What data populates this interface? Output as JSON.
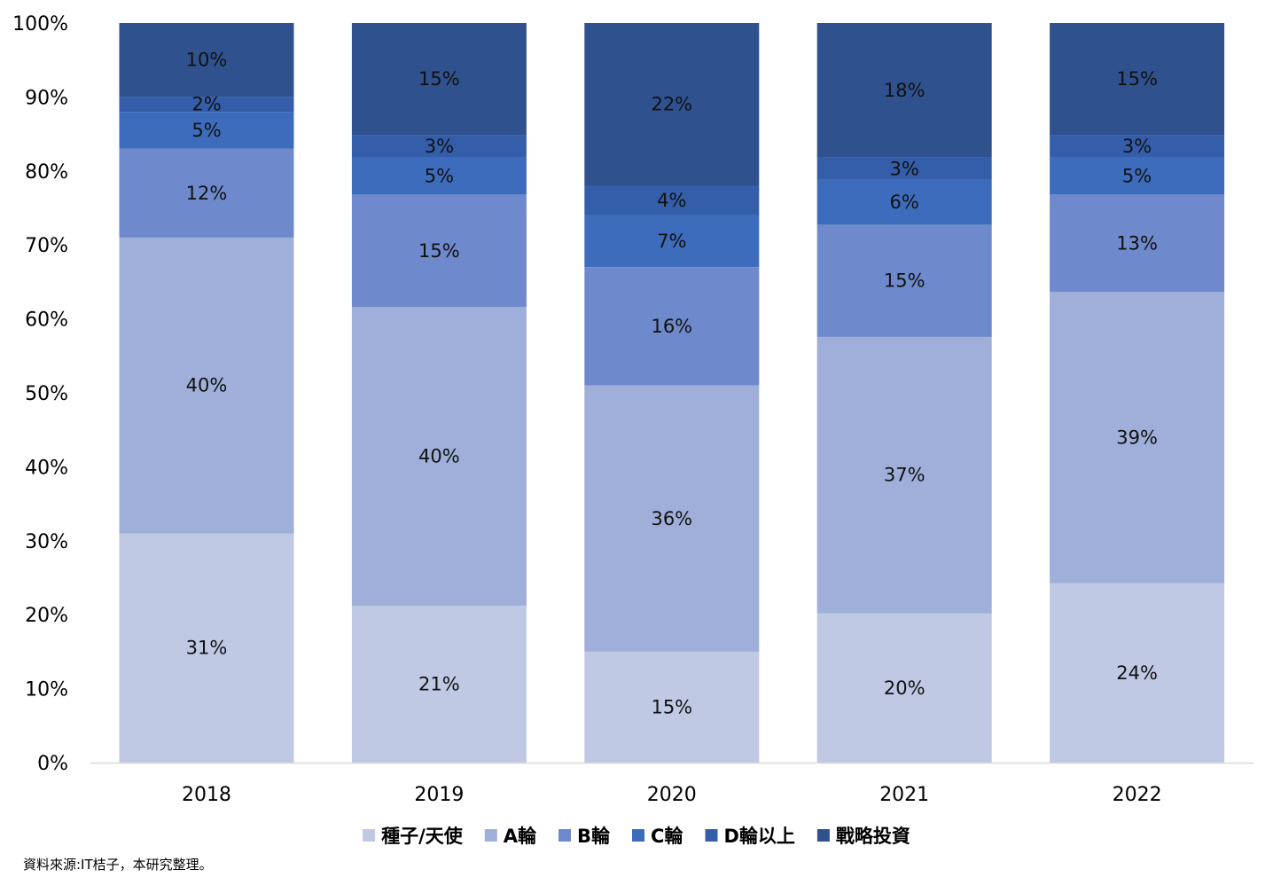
{
  "chart_data": {
    "type": "bar",
    "stacked": true,
    "percent_stacked": true,
    "categories": [
      "2018",
      "2019",
      "2020",
      "2021",
      "2022"
    ],
    "series": [
      {
        "name": "種子/天使",
        "values": [
          31,
          21,
          15,
          20,
          24
        ],
        "labels": [
          "31%",
          "21%",
          "15%",
          "20%",
          "24%"
        ],
        "color": "#C0C9E4"
      },
      {
        "name": "A輪",
        "values": [
          40,
          40,
          36,
          37,
          39
        ],
        "labels": [
          "40%",
          "40%",
          "36%",
          "37%",
          "39%"
        ],
        "color": "#9FAFD9"
      },
      {
        "name": "B輪",
        "values": [
          12,
          15,
          16,
          15,
          13
        ],
        "labels": [
          "12%",
          "15%",
          "16%",
          "15%",
          "13%"
        ],
        "color": "#6E89CC"
      },
      {
        "name": "C輪",
        "values": [
          5,
          5,
          7,
          6,
          5
        ],
        "labels": [
          "5%",
          "5%",
          "7%",
          "6%",
          "5%"
        ],
        "color": "#3E6CBC"
      },
      {
        "name": "D輪以上",
        "values": [
          2,
          3,
          4,
          3,
          3
        ],
        "labels": [
          "2%",
          "3%",
          "4%",
          "3%",
          "3%"
        ],
        "color": "#345EAA"
      },
      {
        "name": "戰略投資",
        "values": [
          10,
          15,
          22,
          18,
          15
        ],
        "labels": [
          "10%",
          "15%",
          "22%",
          "18%",
          "15%"
        ],
        "color": "#2F528F"
      }
    ],
    "ylim": [
      0,
      100
    ],
    "y_ticks": [
      "0%",
      "10%",
      "20%",
      "30%",
      "40%",
      "50%",
      "60%",
      "70%",
      "80%",
      "90%",
      "100%"
    ],
    "grid": false,
    "legend_position": "bottom",
    "title": "",
    "xlabel": "",
    "ylabel": ""
  },
  "source_note": "資料來源:IT桔子，本研究整理。"
}
